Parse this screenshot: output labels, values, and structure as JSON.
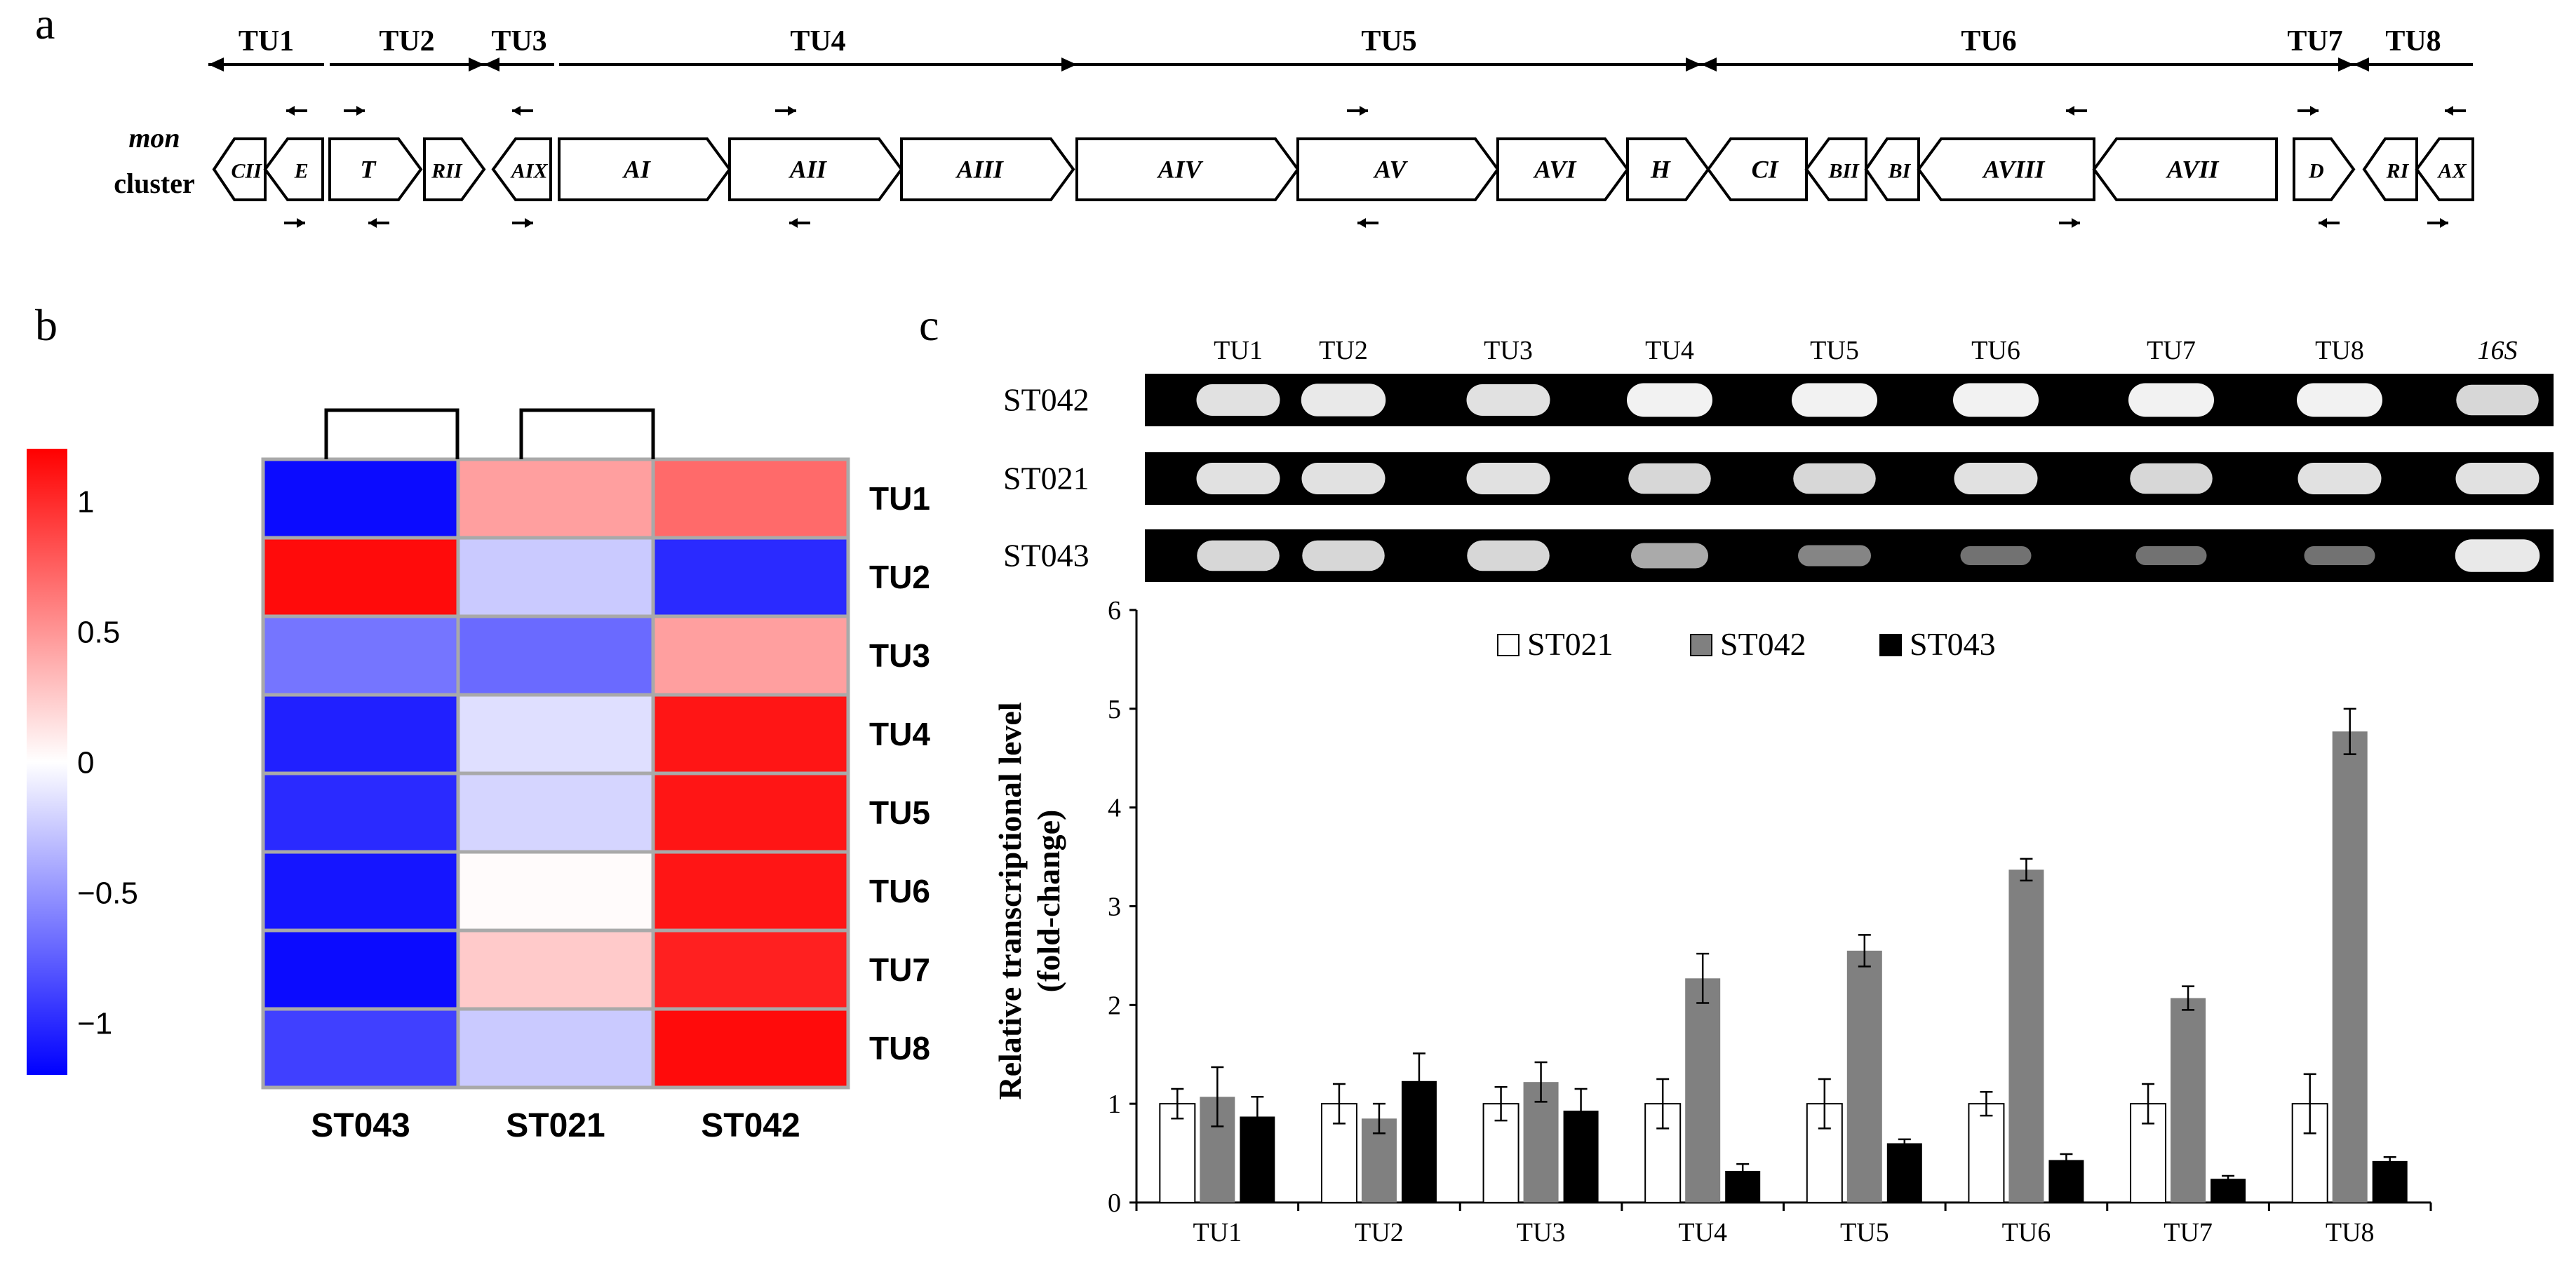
{
  "panel_labels": {
    "a": "a",
    "b": "b",
    "c": "c"
  },
  "colors": {
    "heat_low": "#0000ff",
    "heat_mid": "#ffffff",
    "heat_high": "#ff0000",
    "bar_st021": "#ffffff",
    "bar_st042": "#808080",
    "bar_st043": "#000000",
    "gel_bg": "#000000",
    "gel_band": "#f2f2f2"
  },
  "panel_a": {
    "cluster_label_1": "mon",
    "cluster_label_2": "cluster",
    "tus": [
      {
        "label": "TU1",
        "direction": "left"
      },
      {
        "label": "TU2",
        "direction": "right"
      },
      {
        "label": "TU3",
        "direction": "left"
      },
      {
        "label": "TU4",
        "direction": "right"
      },
      {
        "label": "TU5",
        "direction": "right"
      },
      {
        "label": "TU6",
        "direction": "left"
      },
      {
        "label": "TU7",
        "direction": "right"
      },
      {
        "label": "TU8",
        "direction": "left"
      }
    ],
    "genes": [
      {
        "label": "CII",
        "direction": "left"
      },
      {
        "label": "E",
        "direction": "left"
      },
      {
        "label": "T",
        "direction": "right"
      },
      {
        "label": "RII",
        "direction": "right"
      },
      {
        "label": "AIX",
        "direction": "left"
      },
      {
        "label": "AI",
        "direction": "right"
      },
      {
        "label": "AII",
        "direction": "right"
      },
      {
        "label": "AIII",
        "direction": "right"
      },
      {
        "label": "AIV",
        "direction": "right"
      },
      {
        "label": "AV",
        "direction": "right"
      },
      {
        "label": "AVI",
        "direction": "right"
      },
      {
        "label": "H",
        "direction": "right"
      },
      {
        "label": "CI",
        "direction": "left"
      },
      {
        "label": "BII",
        "direction": "left"
      },
      {
        "label": "BI",
        "direction": "left"
      },
      {
        "label": "AVIII",
        "direction": "left"
      },
      {
        "label": "AVII",
        "direction": "left"
      },
      {
        "label": "D",
        "direction": "right"
      },
      {
        "label": "RI",
        "direction": "left"
      },
      {
        "label": "AX",
        "direction": "left"
      }
    ],
    "primer_arrows": [
      {
        "direction": "left",
        "row": "top"
      },
      {
        "direction": "right",
        "row": "bottom"
      },
      {
        "direction": "right",
        "row": "top"
      },
      {
        "direction": "left",
        "row": "bottom"
      },
      {
        "direction": "left",
        "row": "top"
      },
      {
        "direction": "right",
        "row": "bottom"
      },
      {
        "direction": "right",
        "row": "top"
      },
      {
        "direction": "left",
        "row": "bottom"
      },
      {
        "direction": "right",
        "row": "top"
      },
      {
        "direction": "left",
        "row": "bottom"
      },
      {
        "direction": "left",
        "row": "top"
      },
      {
        "direction": "right",
        "row": "bottom"
      },
      {
        "direction": "right",
        "row": "top"
      },
      {
        "direction": "left",
        "row": "bottom"
      },
      {
        "direction": "left",
        "row": "top"
      },
      {
        "direction": "right",
        "row": "bottom"
      }
    ]
  },
  "chart_data": [
    {
      "type": "heatmap",
      "title": "",
      "rows": [
        "TU1",
        "TU2",
        "TU3",
        "TU4",
        "TU5",
        "TU6",
        "TU7",
        "TU8"
      ],
      "columns": [
        "ST043",
        "ST021",
        "ST042"
      ],
      "values": [
        [
          -1.15,
          0.45,
          0.7
        ],
        [
          1.15,
          -0.25,
          -1.0
        ],
        [
          -0.65,
          -0.7,
          0.45
        ],
        [
          -1.05,
          -0.15,
          1.1
        ],
        [
          -1.0,
          -0.2,
          1.1
        ],
        [
          -1.1,
          0.02,
          1.1
        ],
        [
          -1.15,
          0.25,
          1.05
        ],
        [
          -0.9,
          -0.25,
          1.15
        ]
      ],
      "colorbar_ticks": [
        "1",
        "0.5",
        "0",
        "−0.5",
        "−1"
      ],
      "colorbar_tick_values": [
        1,
        0.5,
        0,
        -0.5,
        -1
      ],
      "colorbar_range": [
        -1.2,
        1.2
      ],
      "dendrogram": "ST021 and ST042 cluster; ST043 separate"
    },
    {
      "type": "bar",
      "title": "",
      "categories": [
        "TU1",
        "TU2",
        "TU3",
        "TU4",
        "TU5",
        "TU6",
        "TU7",
        "TU8"
      ],
      "series": [
        {
          "name": "ST021",
          "values": [
            1.0,
            1.0,
            1.0,
            1.0,
            1.0,
            1.0,
            1.0,
            1.0
          ],
          "errors": [
            0.15,
            0.2,
            0.17,
            0.25,
            0.25,
            0.12,
            0.2,
            0.3
          ]
        },
        {
          "name": "ST042",
          "values": [
            1.07,
            0.85,
            1.22,
            2.27,
            2.55,
            3.37,
            2.07,
            4.77
          ],
          "errors": [
            0.3,
            0.15,
            0.2,
            0.25,
            0.16,
            0.11,
            0.12,
            0.23
          ]
        },
        {
          "name": "ST043",
          "values": [
            0.87,
            1.23,
            0.93,
            0.32,
            0.6,
            0.43,
            0.24,
            0.42
          ],
          "errors": [
            0.2,
            0.28,
            0.22,
            0.07,
            0.04,
            0.06,
            0.03,
            0.04
          ]
        }
      ],
      "xlabel": "",
      "ylabel_1": "Relative transcriptional level",
      "ylabel_2": "(fold-change)",
      "ylim": [
        0,
        6
      ],
      "yticks": [
        0,
        1,
        2,
        3,
        4,
        5,
        6
      ],
      "legend_position": "top-center",
      "grid": false
    }
  ],
  "gel": {
    "lanes": [
      "TU1",
      "TU2",
      "TU3",
      "TU4",
      "TU5",
      "TU6",
      "TU7",
      "TU8",
      "16S"
    ],
    "rows": [
      {
        "label": "ST042",
        "intensity": [
          0.9,
          0.95,
          0.9,
          1.0,
          1.0,
          1.0,
          1.0,
          1.0,
          0.85
        ]
      },
      {
        "label": "ST021",
        "intensity": [
          0.9,
          0.9,
          0.9,
          0.85,
          0.85,
          0.9,
          0.85,
          0.9,
          0.9
        ]
      },
      {
        "label": "ST043",
        "intensity": [
          0.85,
          0.85,
          0.85,
          0.6,
          0.4,
          0.3,
          0.3,
          0.3,
          0.95
        ]
      }
    ]
  }
}
